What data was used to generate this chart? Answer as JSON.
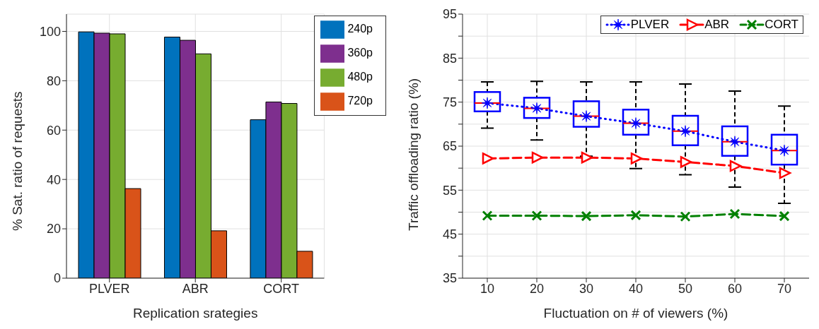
{
  "chart_data": [
    {
      "type": "bar",
      "xlabel": "Replication srategies",
      "ylabel": "% Sat. ratio of requests",
      "categories": [
        "PLVER",
        "ABR",
        "CORT"
      ],
      "ylim": [
        0,
        107
      ],
      "yticks": [
        0,
        20,
        40,
        60,
        80,
        100
      ],
      "grid": true,
      "legend": "top right",
      "series": [
        {
          "name": "240p",
          "color": "#0072bd",
          "values": [
            99.8,
            97.7,
            64.2
          ]
        },
        {
          "name": "360p",
          "color": "#7e2f8e",
          "values": [
            99.3,
            96.4,
            71.4
          ]
        },
        {
          "name": "480p",
          "color": "#77ac30",
          "values": [
            99.0,
            90.9,
            70.8
          ]
        },
        {
          "name": "720p",
          "color": "#d95319",
          "values": [
            36.3,
            19.2,
            10.9
          ]
        }
      ]
    },
    {
      "type": "line",
      "xlabel": "Fluctuation on # of viewers (%)",
      "ylabel": "Traffic offloading ratio (%)",
      "x": [
        10,
        20,
        30,
        40,
        50,
        60,
        70
      ],
      "xlim": [
        5,
        75
      ],
      "xticks": [
        10,
        20,
        30,
        40,
        50,
        60,
        70
      ],
      "ylim": [
        35,
        95
      ],
      "yticks": [
        35,
        {
          "value": 40,
          "label": null
        },
        45,
        {
          "value": 50,
          "label": null
        },
        55,
        {
          "value": 60,
          "label": null
        },
        65,
        {
          "value": 70,
          "label": null
        },
        75,
        {
          "value": 80,
          "label": null
        },
        85,
        {
          "value": 90,
          "label": null
        },
        95
      ],
      "grid": true,
      "legend": "top right",
      "series": [
        {
          "type": "box",
          "color": "#0000ff",
          "boxes": [
            {
              "low": 69.1,
              "q1": 72.9,
              "median": 74.8,
              "q3": 77.3,
              "high": 79.6
            },
            {
              "low": 66.4,
              "q1": 71.4,
              "median": 73.6,
              "q3": 76.0,
              "high": 79.7
            },
            {
              "low": 62.7,
              "q1": 69.4,
              "median": 71.8,
              "q3": 75.2,
              "high": 79.6
            },
            {
              "low": 59.9,
              "q1": 67.6,
              "median": 70.2,
              "q3": 73.3,
              "high": 79.6
            },
            {
              "low": 58.5,
              "q1": 65.2,
              "median": 68.4,
              "q3": 71.9,
              "high": 79.1
            },
            {
              "low": 55.7,
              "q1": 62.8,
              "median": 66.0,
              "q3": 69.5,
              "high": 77.5
            },
            {
              "low": 52.0,
              "q1": 60.8,
              "median": 64.0,
              "q3": 67.6,
              "high": 74.1
            }
          ]
        },
        {
          "name": "PLVER",
          "color": "#0000ff",
          "marker": "star",
          "line_style": "dotted",
          "values": [
            74.8,
            73.6,
            71.8,
            70.2,
            68.4,
            66.0,
            64.0
          ]
        },
        {
          "name": "ABR",
          "color": "#ff0000",
          "marker": "triangle",
          "line_style": "dashed",
          "values": [
            62.2,
            62.4,
            62.4,
            62.2,
            61.4,
            60.5,
            58.9
          ]
        },
        {
          "name": "CORT",
          "color": "#008000",
          "marker": "cross",
          "line_style": "dashed",
          "values": [
            49.2,
            49.2,
            49.1,
            49.3,
            49.0,
            49.6,
            49.1
          ]
        }
      ]
    }
  ]
}
